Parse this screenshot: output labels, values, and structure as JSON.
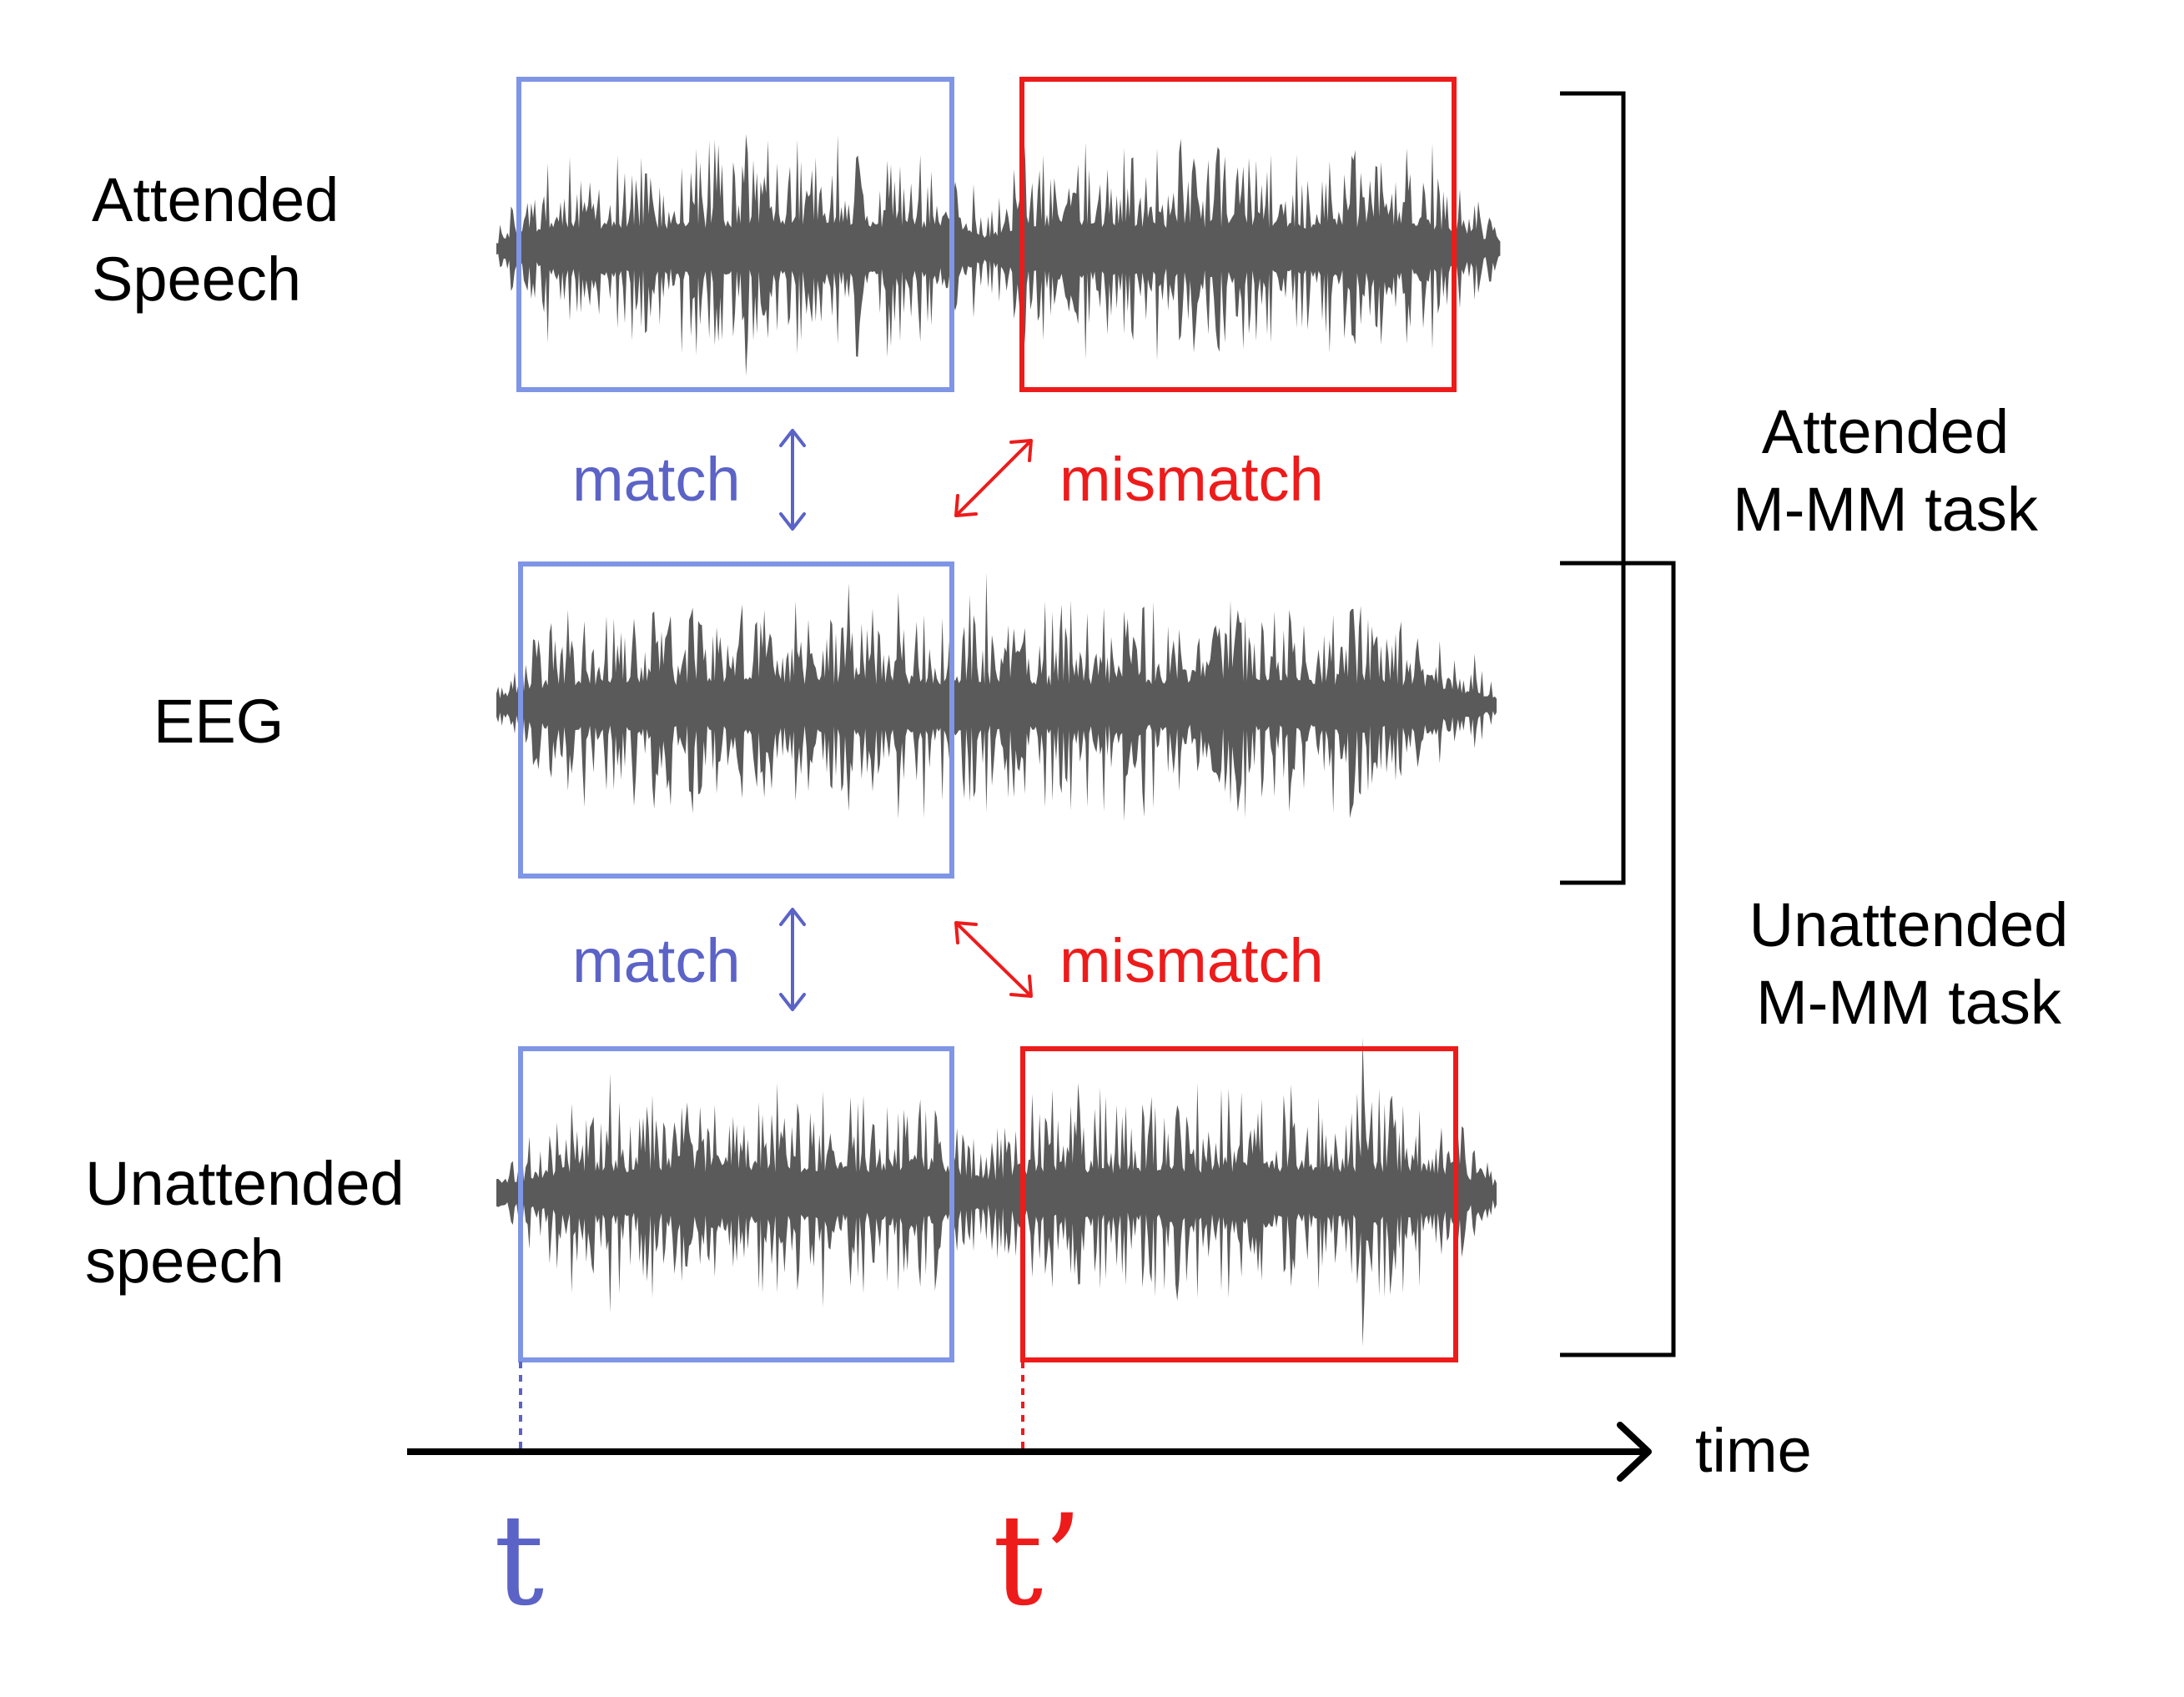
{
  "rows": {
    "attended": {
      "line1": "Attended",
      "line2": "Speech"
    },
    "eeg": {
      "label": "EEG"
    },
    "unattended": {
      "line1": "Unattended",
      "line2": "speech"
    }
  },
  "relations": {
    "top_match": "match",
    "top_mismatch": "mismatch",
    "bottom_match": "match",
    "bottom_mismatch": "mismatch"
  },
  "tasks": {
    "attended": {
      "line1": "Attended",
      "line2": "M-MM task"
    },
    "unattended": {
      "line1": "Unattended",
      "line2": "M-MM task"
    }
  },
  "axis": {
    "label": "time",
    "t_match": "t",
    "t_mismatch": "t’"
  },
  "colors": {
    "match": "#5b63c7",
    "match_box": "#7f95e6",
    "mismatch": "#ee1b1b",
    "waveform": "#5a5a5a",
    "ink": "#000000"
  }
}
